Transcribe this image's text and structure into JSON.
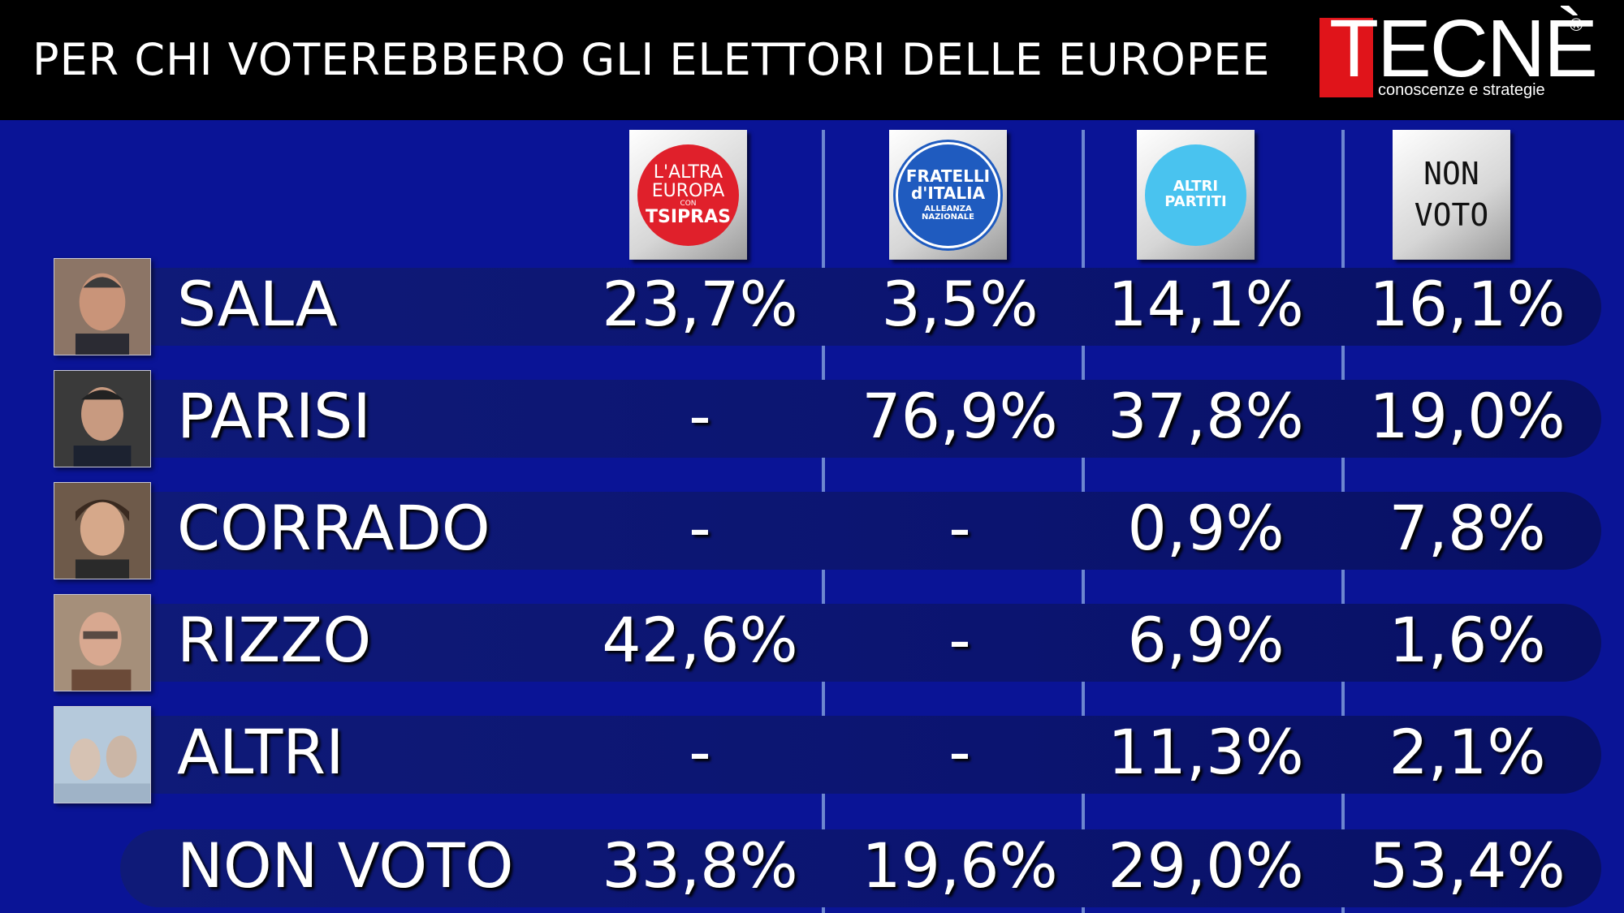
{
  "header": {
    "title": "PER CHI VOTEREBBERO GLI ELETTORI DELLE EUROPEE",
    "logo_word": "TECNÈ",
    "logo_reg": "®",
    "logo_tag": "conoscenze e strategie"
  },
  "columns": [
    {
      "name": "altra-europa",
      "lines": [
        "L'ALTRA",
        "EUROPA",
        "CON",
        "TSIPRAS"
      ],
      "color": "#e0202b"
    },
    {
      "name": "fratelli-italia",
      "lines": [
        "FRATELLI d'ITALIA",
        "ALLEANZA NAZIONALE"
      ],
      "color": "#1f5bbf"
    },
    {
      "name": "altri-partiti",
      "lines": [
        "ALTRI PARTITI"
      ],
      "color": "#49c3ef"
    },
    {
      "name": "non-voto",
      "lines": [
        "NON",
        "VOTO"
      ],
      "color": "#ffffff"
    }
  ],
  "rows": [
    {
      "label": "SALA",
      "values": [
        "23,7%",
        "3,5%",
        "14,1%",
        "16,1%"
      ]
    },
    {
      "label": "PARISI",
      "values": [
        "-",
        "76,9%",
        "37,8%",
        "19,0%"
      ]
    },
    {
      "label": "CORRADO",
      "values": [
        "-",
        "-",
        "0,9%",
        "7,8%"
      ]
    },
    {
      "label": "RIZZO",
      "values": [
        "42,6%",
        "-",
        "6,9%",
        "1,6%"
      ]
    },
    {
      "label": "ALTRI",
      "values": [
        "-",
        "-",
        "11,3%",
        "2,1%"
      ]
    },
    {
      "label": "NON VOTO",
      "values": [
        "33,8%",
        "19,6%",
        "29,0%",
        "53,4%"
      ]
    }
  ]
}
